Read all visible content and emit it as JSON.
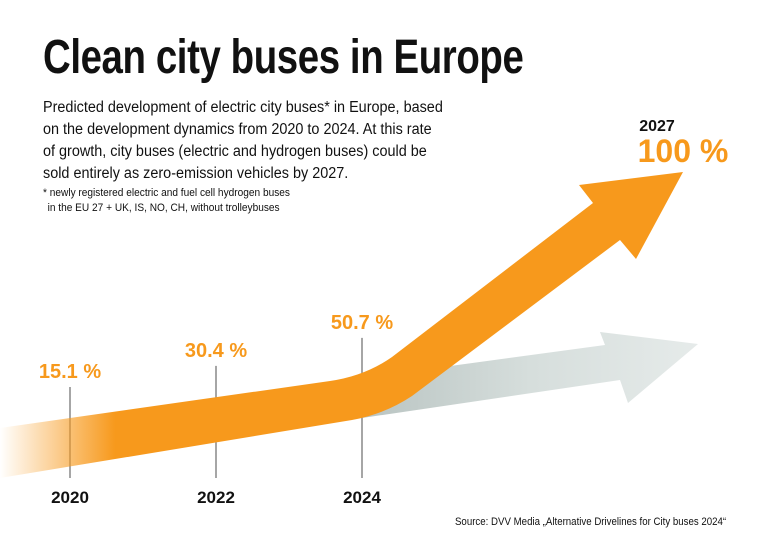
{
  "title": "Clean city buses in Europe",
  "description": [
    "Predicted development of electric city buses* in Europe, based",
    "on the development dynamics from 2020 to 2024. At this rate",
    "of growth, city buses (electric and hydrogen buses) could be",
    "sold entirely as zero-emission vehicles by 2027."
  ],
  "footnote": [
    "* newly registered electric and fuel cell hydrogen buses",
    "  in the EU 27 + UK, IS, NO, CH, without trolleybuses"
  ],
  "source": "Source: DVV Media „Alternative Drivelines for City buses 2024“",
  "colors": {
    "accent": "#F7991C",
    "trend_grey": "#D9E0DE",
    "text": "#111111"
  },
  "chart_data": {
    "type": "line",
    "x": [
      2020,
      2022,
      2024,
      2027
    ],
    "values": [
      15.1,
      30.4,
      50.7,
      100
    ],
    "labels": [
      "15.1 %",
      "30.4 %",
      "50.7 %",
      "100 %"
    ],
    "tick_labels": [
      "2020",
      "2022",
      "2024",
      "2027"
    ],
    "unit": "%",
    "grid": false
  }
}
